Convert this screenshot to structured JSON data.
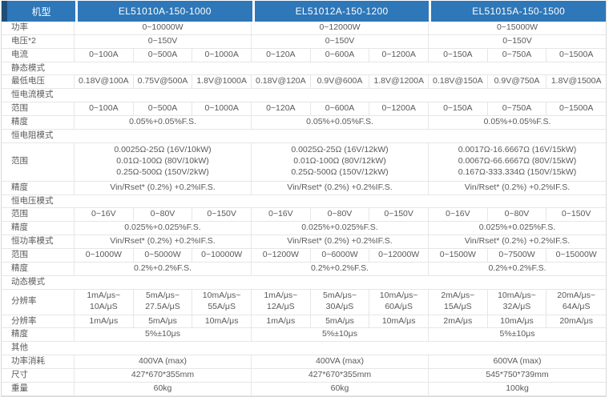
{
  "header": {
    "row_label": "机型",
    "models": [
      "EL51010A-150-1000",
      "EL51012A-150-1200",
      "EL51015A-150-1500"
    ]
  },
  "rows": {
    "power": {
      "label": "功率",
      "values": [
        "0~10000W",
        "0~12000W",
        "0~15000W"
      ]
    },
    "voltage": {
      "label": "电压*2",
      "values": [
        "0~150V",
        "0~150V",
        "0~150V"
      ]
    },
    "current": {
      "label": "电流",
      "values": [
        [
          "0~100A",
          "0~500A",
          "0~1000A"
        ],
        [
          "0~120A",
          "0~600A",
          "0~1200A"
        ],
        [
          "0~150A",
          "0~750A",
          "0~1500A"
        ]
      ]
    },
    "static_section": {
      "label": "静态模式"
    },
    "min_voltage": {
      "label": "最低电压",
      "values": [
        [
          "0.18V@100A",
          "0.75V@500A",
          "1.8V@1000A"
        ],
        [
          "0.18V@120A",
          "0.9V@600A",
          "1.8V@1200A"
        ],
        [
          "0.18V@150A",
          "0.9V@750A",
          "1.8V@1500A"
        ]
      ]
    },
    "cc_section": {
      "label": "恒电流模式"
    },
    "cc_range": {
      "label": "范围",
      "values": [
        [
          "0~100A",
          "0~500A",
          "0~1000A"
        ],
        [
          "0~120A",
          "0~600A",
          "0~1200A"
        ],
        [
          "0~150A",
          "0~750A",
          "0~1500A"
        ]
      ]
    },
    "cc_accuracy": {
      "label": "精度",
      "values": [
        "0.05%+0.05%F.S.",
        "0.05%+0.05%F.S.",
        "0.05%+0.05%F.S."
      ]
    },
    "cr_section": {
      "label": "恒电阻模式"
    },
    "cr_range": {
      "label": "范围",
      "values": [
        "0.0025Ω-25Ω (16V/10kW)\n0.01Ω-100Ω (80V/10kW)\n0.25Ω-500Ω (150V/2kW)",
        "0.0025Ω-25Ω (16V/12kW)\n0.01Ω-100Ω (80V/12kW)\n0.25Ω-500Ω (150V/12kW)",
        "0.0017Ω-16.6667Ω (16V/15kW)\n0.0067Ω-66.6667Ω (80V/15kW)\n0.167Ω-333.334Ω (150V/15kW)"
      ]
    },
    "cr_accuracy": {
      "label": "精度",
      "values": [
        "Vin/Rset* (0.2%) +0.2%IF.S.",
        "Vin/Rset* (0.2%) +0.2%IF.S.",
        "Vin/Rset* (0.2%) +0.2%IF.S."
      ]
    },
    "cv_section": {
      "label": "恒电压模式"
    },
    "cv_range": {
      "label": "范围",
      "values": [
        [
          "0~16V",
          "0~80V",
          "0~150V"
        ],
        [
          "0~16V",
          "0~80V",
          "0~150V"
        ],
        [
          "0~16V",
          "0~80V",
          "0~150V"
        ]
      ]
    },
    "cv_accuracy": {
      "label": "精度",
      "values": [
        "0.025%+0.025%F.S.",
        "0.025%+0.025%F.S.",
        "0.025%+0.025%F.S."
      ]
    },
    "cp_mode": {
      "label": "恒功率模式",
      "values": [
        "Vin/Rset* (0.2%) +0.2%IF.S.",
        "Vin/Rset* (0.2%) +0.2%IF.S.",
        "Vin/Rset* (0.2%) +0.2%IF.S."
      ]
    },
    "cp_range": {
      "label": "范围",
      "values": [
        [
          "0~1000W",
          "0~5000W",
          "0~10000W"
        ],
        [
          "0~1200W",
          "0~6000W",
          "0~12000W"
        ],
        [
          "0~1500W",
          "0~7500W",
          "0~15000W"
        ]
      ]
    },
    "cp_accuracy": {
      "label": "精度",
      "values": [
        "0.2%+0.2%F.S.",
        "0.2%+0.2%F.S.",
        "0.2%+0.2%F.S."
      ]
    },
    "dyn_section": {
      "label": "动态模式"
    },
    "slew_rate": {
      "label": "分辨率",
      "values": [
        [
          "1mA/μs~\n10A/μS",
          "5mA/μs~\n27.5A/μS",
          "10mA/μs~\n55A/μS"
        ],
        [
          "1mA/μs~\n12A/μS",
          "5mA/μs~\n30A/μS",
          "10mA/μs~\n60A/μS"
        ],
        [
          "2mA/μs~\n15A/μS",
          "10mA/μs~\n32A/μS",
          "20mA/μs~\n64A/μS"
        ]
      ]
    },
    "resolution": {
      "label": "分辨率",
      "values": [
        [
          "1mA/μs",
          "5mA/μs",
          "10mA/μs"
        ],
        [
          "1mA/μs",
          "5mA/μs",
          "10mA/μs"
        ],
        [
          "2mA/μs",
          "10mA/μs",
          "20mA/μs"
        ]
      ]
    },
    "dyn_accuracy": {
      "label": "精度",
      "values": [
        "5%±10μs",
        "5%±10μs",
        "5%±10μs"
      ]
    },
    "other_section": {
      "label": "其他"
    },
    "consumption": {
      "label": "功率消耗",
      "values": [
        "400VA (max)",
        "400VA (max)",
        "600VA (max)"
      ]
    },
    "size": {
      "label": "尺寸",
      "values": [
        "427*670*355mm",
        "427*670*355mm",
        "545*750*739mm"
      ]
    },
    "weight": {
      "label": "重量",
      "values": [
        "60kg",
        "60kg",
        "100kg"
      ]
    }
  },
  "colors": {
    "header_bg": "#2e77b8",
    "header_accent": "#1f4e79",
    "border": "#e6e6e6",
    "text": "#595959"
  }
}
